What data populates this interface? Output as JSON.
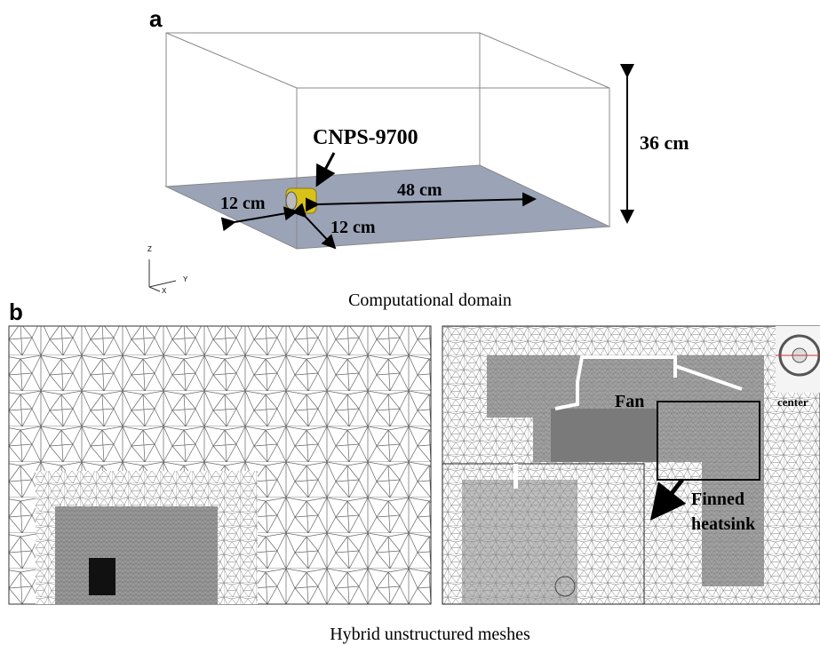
{
  "panel_a": {
    "label": "a",
    "component": "CNPS-9700",
    "height": "36 cm",
    "width_left": "12 cm",
    "length": "48 cm",
    "width_front": "12 cm",
    "axes": [
      "Z",
      "Y",
      "X"
    ],
    "caption": "Computational domain"
  },
  "panel_b": {
    "label": "b",
    "fan": "Fan",
    "heatsink": [
      "Finned",
      "heatsink"
    ],
    "center": "center",
    "caption": "Hybrid unstructured meshes"
  }
}
